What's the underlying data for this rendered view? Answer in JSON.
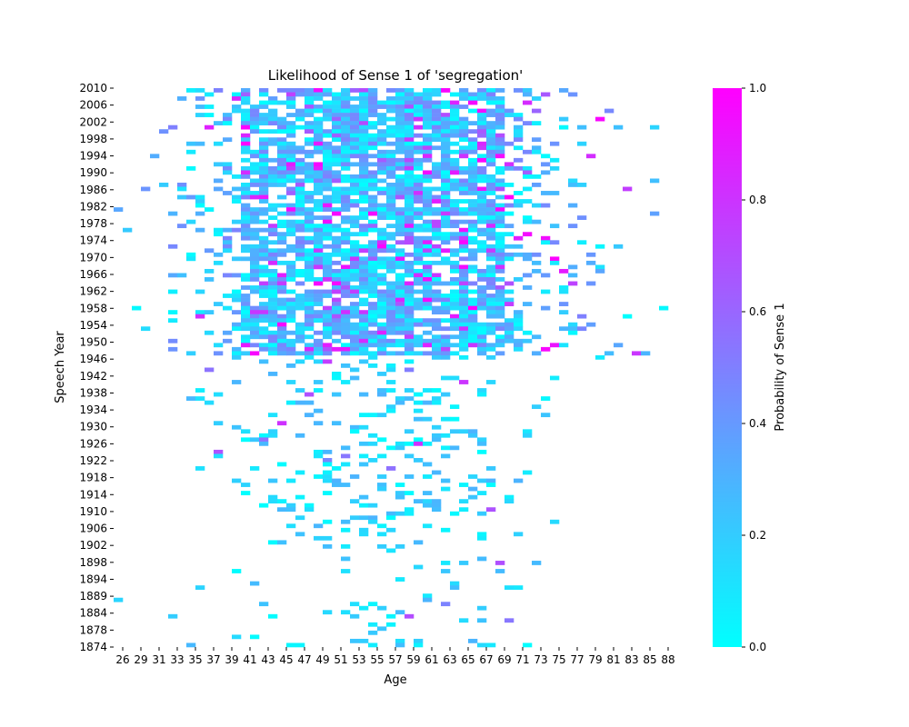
{
  "chart_data": {
    "type": "heatmap",
    "title": "Likelihood of Sense 1 of 'segregation'",
    "xlabel": "Age",
    "ylabel": "Speech Year",
    "colorbar_label": "Probability of Sense 1",
    "color_min": "#00ffff",
    "color_max": "#ff00ff",
    "x_tick_labels": [
      "26",
      "29",
      "31",
      "33",
      "35",
      "37",
      "39",
      "41",
      "43",
      "45",
      "47",
      "49",
      "51",
      "53",
      "55",
      "57",
      "59",
      "61",
      "63",
      "65",
      "67",
      "69",
      "71",
      "73",
      "75",
      "77",
      "79",
      "81",
      "83",
      "85",
      "88"
    ],
    "y_tick_labels": [
      "2010",
      "2006",
      "2002",
      "1998",
      "1994",
      "1990",
      "1986",
      "1982",
      "1978",
      "1974",
      "1970",
      "1966",
      "1962",
      "1958",
      "1954",
      "1950",
      "1946",
      "1942",
      "1938",
      "1934",
      "1930",
      "1926",
      "1922",
      "1918",
      "1914",
      "1910",
      "1906",
      "1902",
      "1898",
      "1894",
      "1889",
      "1884",
      "1878",
      "1874"
    ],
    "colorbar_ticks": [
      "0.0",
      "0.2",
      "0.4",
      "0.6",
      "0.8",
      "1.0"
    ],
    "colorbar_range": [
      0,
      1
    ],
    "x_range": [
      26,
      88
    ],
    "y_range": [
      1874,
      2010
    ],
    "grid": false,
    "legend": "colorbar-right"
  }
}
